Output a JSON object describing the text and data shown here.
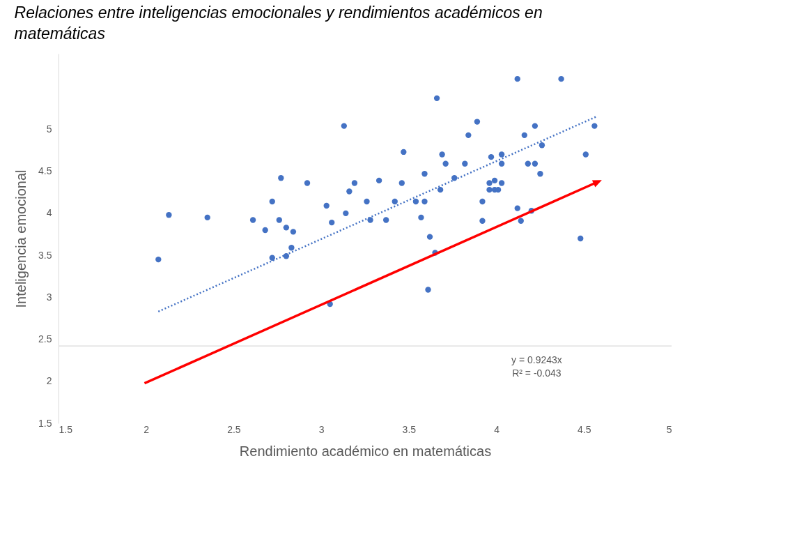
{
  "chart_data": {
    "type": "scatter",
    "title": "Relaciones entre inteligencias emocionales y rendimientos académicos en matemáticas",
    "xlabel": "Rendimiento académico en matemáticas",
    "ylabel": "Inteligencia emocional",
    "xlim": [
      1.5,
      5
    ],
    "ylim": [
      1.5,
      5.9
    ],
    "xticks": [
      1.5,
      2,
      2.5,
      3,
      3.5,
      4,
      4.5,
      5
    ],
    "yticks": [
      1.5,
      2,
      2.5,
      3,
      3.5,
      4,
      4.5,
      5
    ],
    "grid": false,
    "annotations": [
      "y = 0.9243x",
      "R² = -0.043"
    ],
    "ref_lines": [
      {
        "axis": "y",
        "value": 2.42,
        "color": "#d9d9d9"
      }
    ],
    "series": [
      {
        "marker": "circle",
        "color": "#4472c4",
        "x": [
          2.07,
          2.13,
          2.35,
          2.61,
          2.68,
          2.72,
          2.72,
          2.76,
          2.77,
          2.8,
          2.8,
          2.83,
          2.84,
          2.92,
          3.03,
          3.05,
          3.06,
          3.13,
          3.14,
          3.16,
          3.19,
          3.26,
          3.28,
          3.33,
          3.37,
          3.42,
          3.46,
          3.47,
          3.54,
          3.57,
          3.59,
          3.59,
          3.61,
          3.62,
          3.65,
          3.66,
          3.68,
          3.69,
          3.71,
          3.76,
          3.82,
          3.84,
          3.89,
          3.92,
          3.92,
          3.96,
          3.96,
          3.97,
          3.99,
          3.99,
          4.01,
          4.03,
          4.03,
          4.03,
          4.12,
          4.12,
          4.14,
          4.16,
          4.18,
          4.2,
          4.22,
          4.22,
          4.25,
          4.26,
          4.37,
          4.48,
          4.51,
          4.56
        ],
        "values": [
          3.45,
          3.98,
          3.95,
          3.92,
          3.8,
          4.14,
          3.47,
          3.92,
          4.42,
          3.83,
          3.49,
          3.59,
          3.78,
          4.36,
          4.09,
          2.92,
          3.89,
          5.04,
          4,
          4.26,
          4.36,
          4.14,
          3.92,
          4.39,
          3.92,
          4.14,
          4.36,
          4.73,
          4.14,
          3.95,
          4.47,
          4.14,
          3.09,
          3.72,
          3.53,
          5.37,
          4.28,
          4.7,
          4.59,
          4.42,
          4.59,
          4.93,
          5.09,
          4.14,
          3.91,
          4.36,
          4.28,
          4.67,
          4.39,
          4.28,
          4.28,
          4.36,
          4.7,
          4.59,
          4.06,
          5.6,
          3.91,
          4.93,
          4.59,
          4.03,
          5.04,
          4.59,
          4.47,
          4.81,
          5.6,
          3.7,
          4.7,
          5.04
        ]
      },
      {
        "type": "line",
        "marker": "none",
        "line_style": "dotted",
        "color": "#4472c4",
        "x": [
          2.07,
          4.57
        ],
        "values": [
          2.83,
          5.15
        ]
      }
    ]
  }
}
